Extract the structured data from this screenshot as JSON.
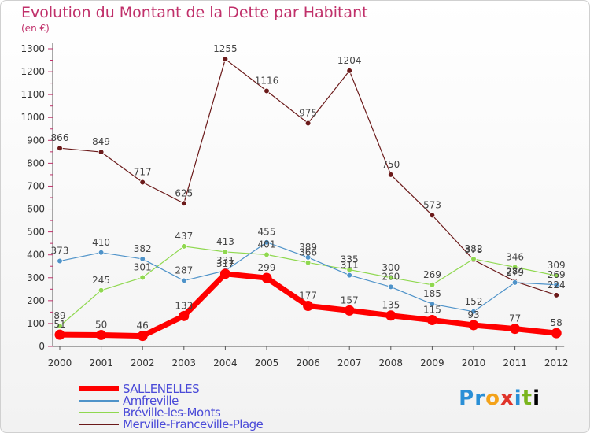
{
  "header": {
    "title": "Evolution du Montant de la Dette par Habitant",
    "subtitle": "(en €)"
  },
  "brand": {
    "letters": [
      "P",
      "r",
      "o",
      "x",
      "i",
      "t",
      "i"
    ]
  },
  "colors": {
    "SALLENELLES": "#ff0000",
    "Amfreville": "#4f93c9",
    "Bréville-les-Monts": "#8fd84f",
    "Merville-Franceville-Plage": "#6b1a1a"
  },
  "chart_data": {
    "type": "line",
    "title": "Evolution du Montant de la Dette par Habitant",
    "subtitle": "(en €)",
    "xlabel": "",
    "ylabel": "",
    "x": [
      "2000",
      "2001",
      "2002",
      "2003",
      "2004",
      "2005",
      "2006",
      "2007",
      "2008",
      "2009",
      "2010",
      "2011",
      "2012"
    ],
    "yticks": [
      0,
      100,
      200,
      300,
      400,
      500,
      600,
      700,
      800,
      900,
      1000,
      1100,
      1200,
      1300
    ],
    "ylim": [
      0,
      1300
    ],
    "grid": false,
    "legend": "bottom-left",
    "series": [
      {
        "name": "SALLENELLES",
        "values": [
          51,
          50,
          46,
          133,
          317,
          299,
          177,
          157,
          135,
          115,
          93,
          77,
          58
        ]
      },
      {
        "name": "Amfreville",
        "values": [
          373,
          410,
          382,
          287,
          331,
          455,
          389,
          311,
          260,
          185,
          152,
          279,
          269
        ]
      },
      {
        "name": "Bréville-les-Monts",
        "values": [
          89,
          245,
          301,
          437,
          413,
          401,
          366,
          335,
          300,
          269,
          382,
          346,
          309
        ]
      },
      {
        "name": "Merville-Franceville-Plage",
        "values": [
          866,
          849,
          717,
          625,
          1255,
          1116,
          975,
          1204,
          750,
          573,
          378,
          284,
          224
        ]
      }
    ]
  }
}
